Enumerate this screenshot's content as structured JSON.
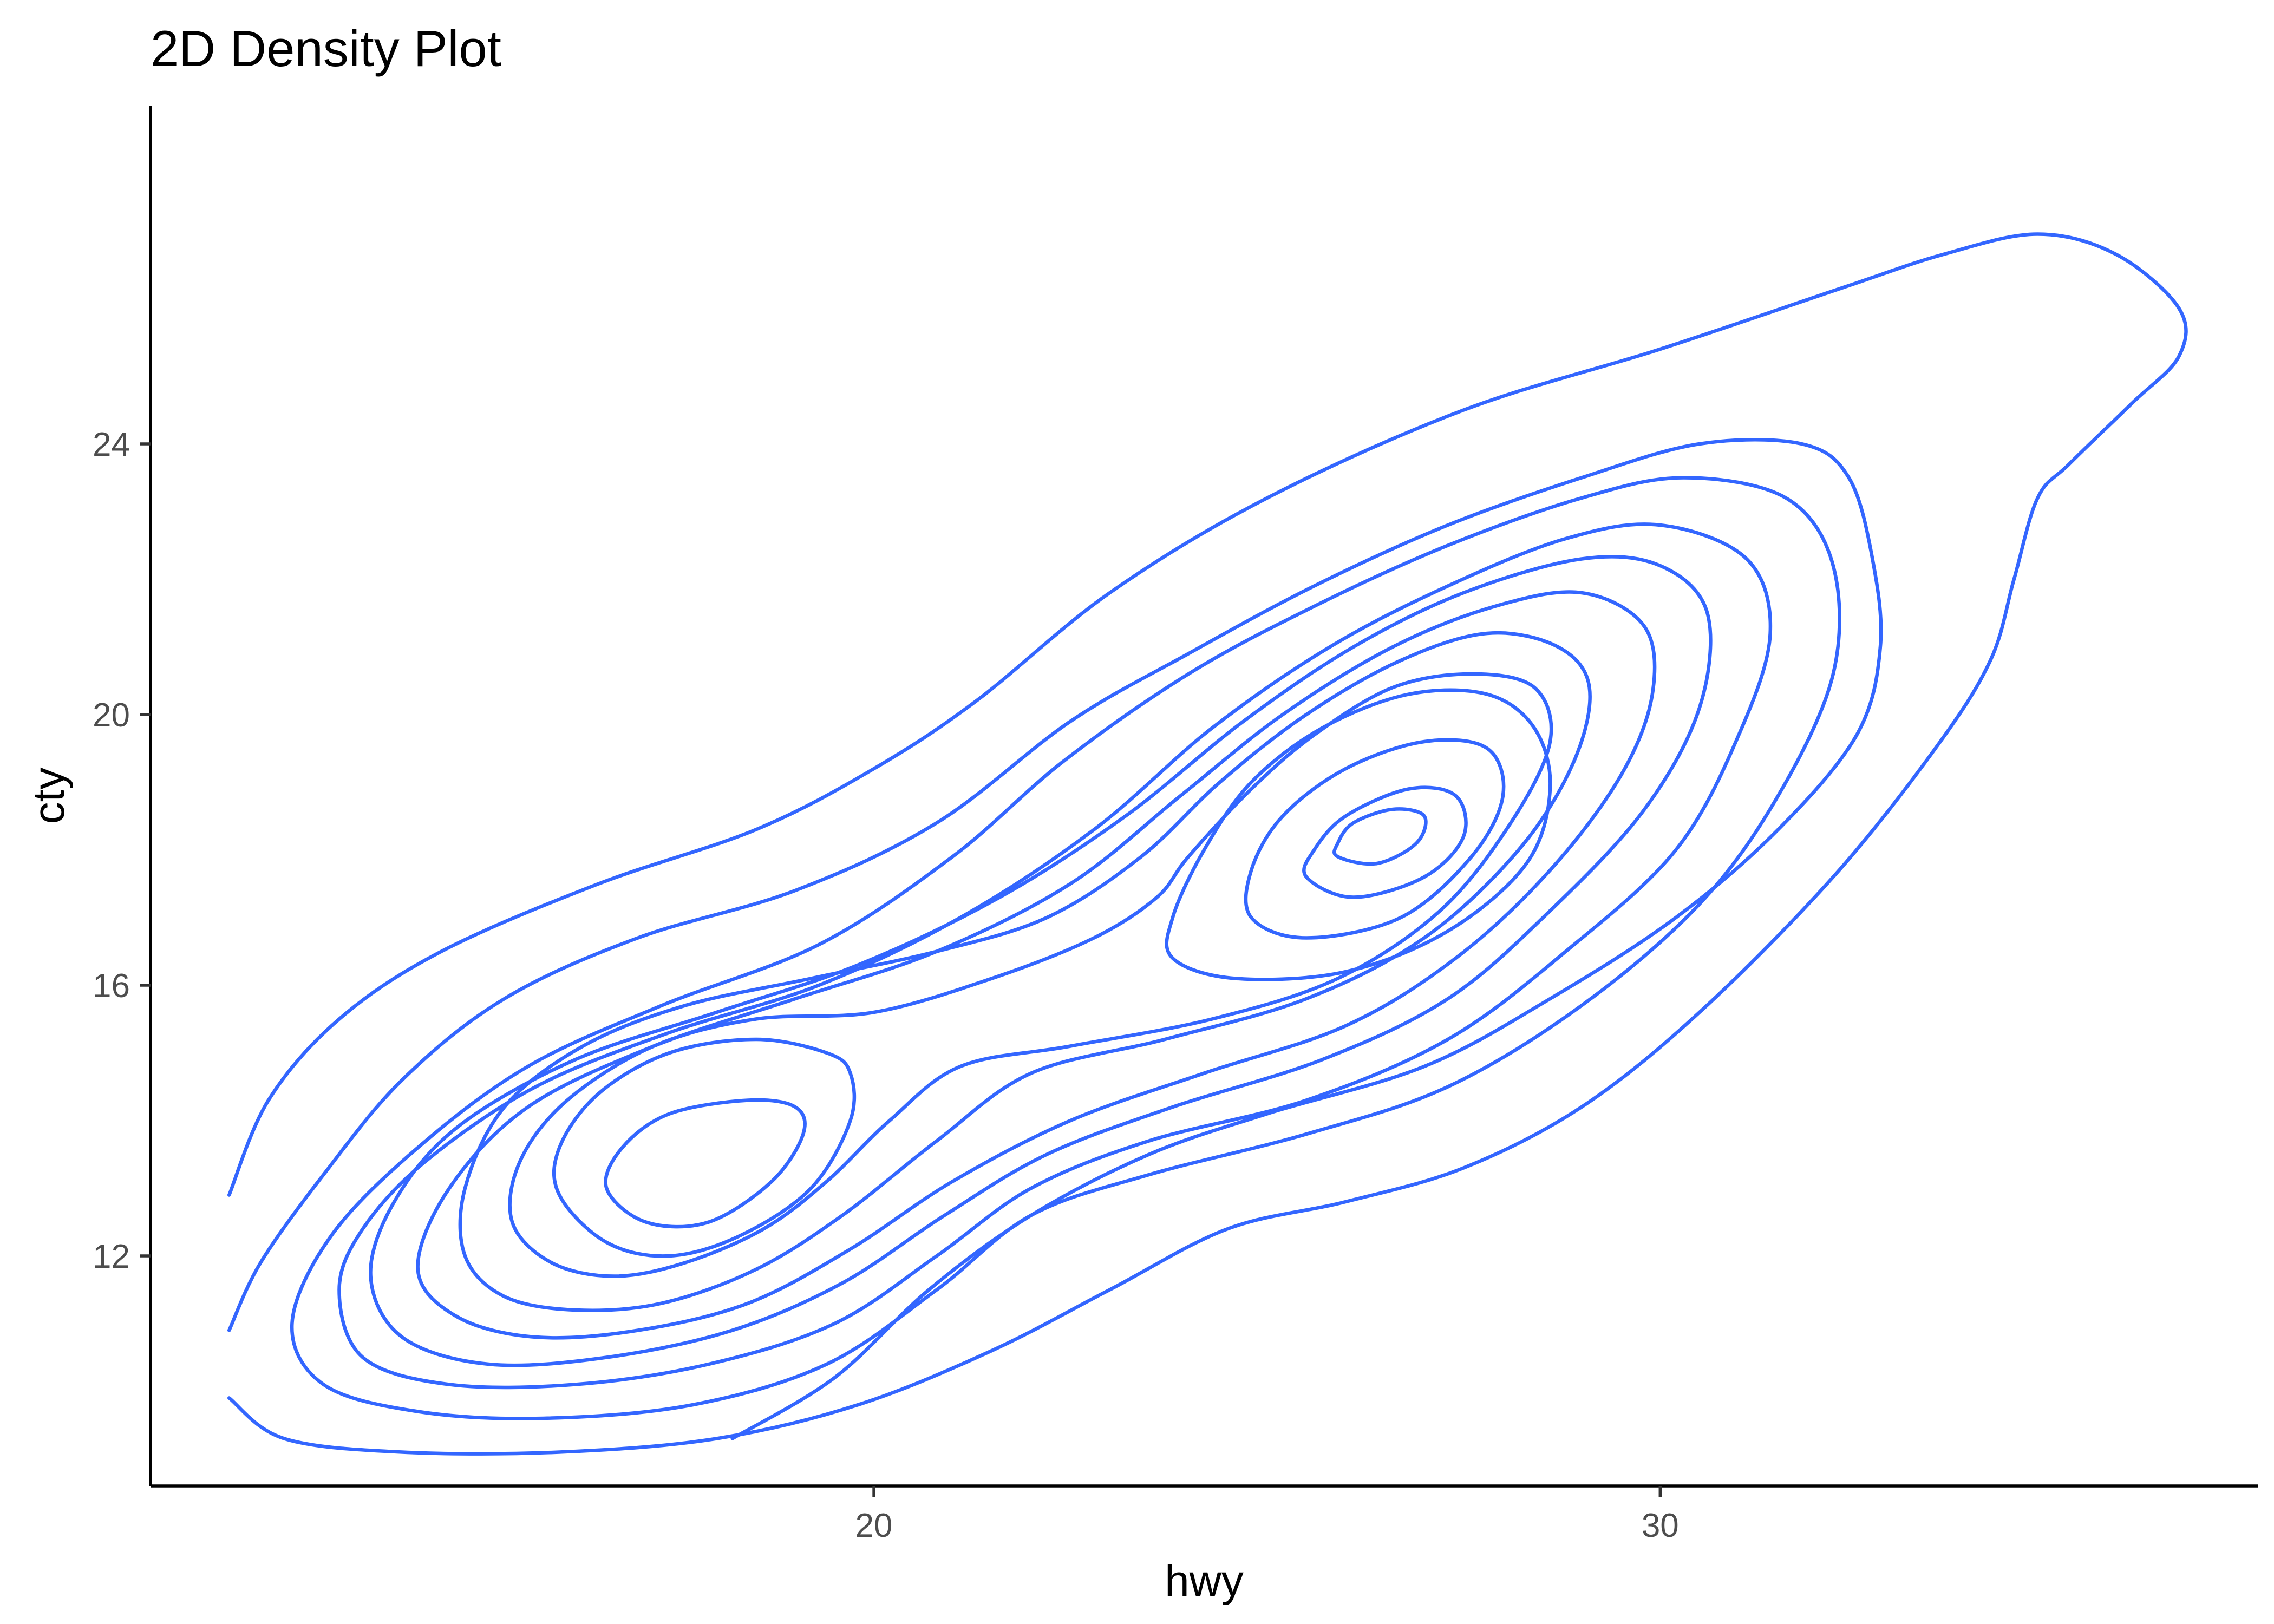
{
  "chart_data": {
    "type": "contour",
    "title": "2D Density Plot",
    "xlabel": "hwy",
    "ylabel": "cty",
    "xlim": [
      10.8,
      37.6
    ],
    "ylim": [
      8.6,
      29.0
    ],
    "x_ticks": [
      20,
      30
    ],
    "y_ticks": [
      12,
      16,
      20,
      24
    ],
    "grid": false,
    "line_color": "#3366FF",
    "density_peaks": [
      {
        "hwy": 26.1,
        "cty": 18.1
      },
      {
        "hwy": 17.1,
        "cty": 13.3
      }
    ],
    "contour_levels": [
      {
        "name": "level-1",
        "shape": "open",
        "points": [
          [
            11.8,
            9.9
          ],
          [
            12.5,
            9.3
          ],
          [
            14,
            9.1
          ],
          [
            16,
            9.1
          ],
          [
            18,
            9.3
          ],
          [
            19.8,
            9.8
          ],
          [
            21.5,
            10.6
          ],
          [
            23,
            11.5
          ],
          [
            24.5,
            12.4
          ],
          [
            26,
            12.8
          ],
          [
            27.5,
            13.3
          ],
          [
            29,
            14.2
          ],
          [
            30.5,
            15.6
          ],
          [
            32.2,
            17.6
          ],
          [
            33.5,
            19.5
          ],
          [
            34.2,
            20.8
          ],
          [
            34.5,
            22
          ],
          [
            34.8,
            23.2
          ],
          [
            35.2,
            23.7
          ],
          [
            36,
            24.6
          ],
          [
            36.6,
            25.3
          ],
          [
            36.6,
            26
          ],
          [
            35.8,
            26.8
          ],
          [
            34.8,
            27.1
          ],
          [
            33.6,
            26.8
          ],
          [
            32.3,
            26.3
          ],
          [
            30,
            25.4
          ],
          [
            27.5,
            24.5
          ],
          [
            25,
            23.2
          ],
          [
            23,
            21.8
          ],
          [
            21.3,
            20.2
          ],
          [
            20,
            19.2
          ],
          [
            18.5,
            18.3
          ],
          [
            16.5,
            17.5
          ],
          [
            14.5,
            16.5
          ],
          [
            13.2,
            15.5
          ],
          [
            12.3,
            14.3
          ],
          [
            11.8,
            12.9
          ]
        ]
      },
      {
        "name": "level-2",
        "shape": "open",
        "points": [
          [
            11.8,
            10.9
          ],
          [
            12.2,
            11.9
          ],
          [
            13,
            13.2
          ],
          [
            14,
            14.6
          ],
          [
            15.3,
            15.8
          ],
          [
            17,
            16.7
          ],
          [
            19,
            17.4
          ],
          [
            20.8,
            18.4
          ],
          [
            22.5,
            19.9
          ],
          [
            24,
            20.9
          ],
          [
            25.6,
            21.9
          ],
          [
            27.3,
            22.8
          ],
          [
            29,
            23.5
          ],
          [
            30.5,
            24
          ],
          [
            31.8,
            24
          ],
          [
            32.4,
            23.5
          ],
          [
            32.7,
            22.3
          ],
          [
            32.8,
            21
          ],
          [
            32.5,
            19.7
          ],
          [
            31.5,
            18.3
          ],
          [
            30.2,
            17
          ],
          [
            28.6,
            15.8
          ],
          [
            27,
            14.8
          ],
          [
            25,
            14.1
          ],
          [
            23.5,
            13.5
          ],
          [
            22,
            12.6
          ],
          [
            20.7,
            11.5
          ],
          [
            19.5,
            10.2
          ],
          [
            18.2,
            9.3
          ]
        ]
      },
      {
        "name": "level-3",
        "shape": "closed",
        "points": [
          [
            12.6,
            11
          ],
          [
            13,
            10.1
          ],
          [
            14.2,
            9.7
          ],
          [
            15.8,
            9.6
          ],
          [
            17.7,
            9.8
          ],
          [
            19.4,
            10.4
          ],
          [
            20.8,
            11.5
          ],
          [
            22,
            12.6
          ],
          [
            23.5,
            13.2
          ],
          [
            25.5,
            13.8
          ],
          [
            27.3,
            14.5
          ],
          [
            29,
            15.7
          ],
          [
            30.5,
            17.2
          ],
          [
            31.5,
            18.8
          ],
          [
            32.2,
            20.6
          ],
          [
            32.2,
            22.2
          ],
          [
            31.6,
            23.2
          ],
          [
            30.3,
            23.5
          ],
          [
            29,
            23.2
          ],
          [
            27.3,
            22.5
          ],
          [
            25.6,
            21.6
          ],
          [
            24,
            20.6
          ],
          [
            22.4,
            19.3
          ],
          [
            21,
            17.9
          ],
          [
            19.3,
            16.6
          ],
          [
            17.3,
            15.7
          ],
          [
            15.6,
            14.8
          ],
          [
            14.2,
            13.6
          ],
          [
            13.1,
            12.3
          ]
        ]
      },
      {
        "name": "level-4",
        "shape": "closed",
        "points": [
          [
            13.2,
            11.5
          ],
          [
            13.5,
            10.5
          ],
          [
            14.6,
            10.1
          ],
          [
            16.2,
            10.1
          ],
          [
            17.9,
            10.4
          ],
          [
            19.5,
            11
          ],
          [
            20.8,
            12
          ],
          [
            22,
            13
          ],
          [
            23.5,
            13.7
          ],
          [
            25.5,
            14.3
          ],
          [
            27.3,
            15.2
          ],
          [
            28.8,
            16.5
          ],
          [
            30.2,
            18
          ],
          [
            31,
            19.7
          ],
          [
            31.4,
            21.2
          ],
          [
            31.1,
            22.3
          ],
          [
            30,
            22.8
          ],
          [
            28.8,
            22.6
          ],
          [
            27.3,
            21.9
          ],
          [
            25.8,
            21
          ],
          [
            24.3,
            19.8
          ],
          [
            22.8,
            18.3
          ],
          [
            21.1,
            17
          ],
          [
            19.3,
            16
          ],
          [
            17.4,
            15.3
          ],
          [
            15.7,
            14.5
          ],
          [
            14.3,
            13.4
          ],
          [
            13.5,
            12.4
          ]
        ]
      },
      {
        "name": "level-5",
        "shape": "closed",
        "points": [
          [
            13.6,
            11.7
          ],
          [
            14,
            10.8
          ],
          [
            15.1,
            10.4
          ],
          [
            16.6,
            10.5
          ],
          [
            18.2,
            10.9
          ],
          [
            19.6,
            11.6
          ],
          [
            20.9,
            12.6
          ],
          [
            22.2,
            13.5
          ],
          [
            23.8,
            14.2
          ],
          [
            25.7,
            14.9
          ],
          [
            27.3,
            15.8
          ],
          [
            28.6,
            17.1
          ],
          [
            29.8,
            18.6
          ],
          [
            30.5,
            20.1
          ],
          [
            30.6,
            21.5
          ],
          [
            30,
            22.2
          ],
          [
            29,
            22.3
          ],
          [
            27.5,
            21.8
          ],
          [
            26.1,
            21
          ],
          [
            24.7,
            19.9
          ],
          [
            23.2,
            18.5
          ],
          [
            21.6,
            17.3
          ],
          [
            19.8,
            16.3
          ],
          [
            18,
            15.6
          ],
          [
            16.2,
            14.9
          ],
          [
            14.7,
            13.9
          ],
          [
            13.9,
            12.8
          ]
        ]
      },
      {
        "name": "level-6",
        "shape": "closed",
        "points": [
          [
            14.2,
            11.8
          ],
          [
            14.7,
            11.1
          ],
          [
            15.7,
            10.8
          ],
          [
            17,
            10.9
          ],
          [
            18.4,
            11.3
          ],
          [
            19.7,
            12.1
          ],
          [
            21,
            13.1
          ],
          [
            22.5,
            14
          ],
          [
            24.2,
            14.7
          ],
          [
            26,
            15.4
          ],
          [
            27.4,
            16.4
          ],
          [
            28.6,
            17.7
          ],
          [
            29.5,
            19.1
          ],
          [
            29.9,
            20.3
          ],
          [
            29.8,
            21.3
          ],
          [
            29,
            21.8
          ],
          [
            27.9,
            21.6
          ],
          [
            26.6,
            21
          ],
          [
            25.2,
            20
          ],
          [
            23.9,
            18.8
          ],
          [
            22.5,
            17.5
          ],
          [
            20.8,
            16.5
          ],
          [
            19,
            15.8
          ],
          [
            17.2,
            15.1
          ],
          [
            15.6,
            14.2
          ],
          [
            14.6,
            13
          ]
        ]
      },
      {
        "name": "level-7",
        "shape": "closed",
        "points": [
          [
            14.8,
            12
          ],
          [
            15.3,
            11.4
          ],
          [
            16.2,
            11.2
          ],
          [
            17.3,
            11.3
          ],
          [
            18.5,
            11.8
          ],
          [
            19.6,
            12.6
          ],
          [
            20.8,
            13.7
          ],
          [
            22,
            14.7
          ],
          [
            23.7,
            15.2
          ],
          [
            25.5,
            15.8
          ],
          [
            27,
            16.7
          ],
          [
            28.2,
            18
          ],
          [
            28.9,
            19.3
          ],
          [
            29.1,
            20.4
          ],
          [
            28.7,
            21
          ],
          [
            27.8,
            21.2
          ],
          [
            26.7,
            20.8
          ],
          [
            25.5,
            20
          ],
          [
            24.4,
            19
          ],
          [
            23.4,
            17.9
          ],
          [
            22.2,
            17
          ],
          [
            20.8,
            16.5
          ],
          [
            19.2,
            16.1
          ],
          [
            17.6,
            15.7
          ],
          [
            16.3,
            15.1
          ],
          [
            15.3,
            14.2
          ],
          [
            14.8,
            13
          ]
        ]
      },
      {
        "name": "level-8",
        "shape": "closed",
        "points": [
          [
            15.4,
            12.5
          ],
          [
            15.9,
            11.9
          ],
          [
            16.7,
            11.7
          ],
          [
            17.6,
            11.9
          ],
          [
            18.6,
            12.4
          ],
          [
            19.4,
            13.1
          ],
          [
            20.2,
            14
          ],
          [
            21.1,
            14.8
          ],
          [
            22.5,
            15.1
          ],
          [
            24.3,
            15.5
          ],
          [
            25.9,
            16.1
          ],
          [
            27.2,
            17.1
          ],
          [
            28.1,
            18.4
          ],
          [
            28.6,
            19.6
          ],
          [
            28.4,
            20.4
          ],
          [
            27.6,
            20.6
          ],
          [
            26.6,
            20.4
          ],
          [
            25.6,
            19.7
          ],
          [
            24.8,
            18.9
          ],
          [
            24,
            17.9
          ],
          [
            23.6,
            17.3
          ],
          [
            22.8,
            16.7
          ],
          [
            21.5,
            16.1
          ],
          [
            20,
            15.6
          ],
          [
            18.5,
            15.5
          ],
          [
            17.2,
            15.1
          ],
          [
            16.1,
            14.3
          ],
          [
            15.5,
            13.4
          ]
        ]
      },
      {
        "name": "level-9",
        "shape": "closed",
        "points": [
          [
            16,
            12.9
          ],
          [
            16.6,
            12.2
          ],
          [
            17.4,
            12
          ],
          [
            18.3,
            12.3
          ],
          [
            19.2,
            13
          ],
          [
            19.7,
            14
          ],
          [
            19.7,
            14.7
          ],
          [
            19.4,
            15
          ],
          [
            18.5,
            15.2
          ],
          [
            17.4,
            15
          ],
          [
            16.5,
            14.4
          ],
          [
            16,
            13.6
          ]
        ]
      },
      {
        "name": "level-10",
        "shape": "closed",
        "points": [
          [
            16.6,
            13
          ],
          [
            17.1,
            12.5
          ],
          [
            17.9,
            12.5
          ],
          [
            18.7,
            13.1
          ],
          [
            19.1,
            13.8
          ],
          [
            19,
            14.2
          ],
          [
            18.4,
            14.3
          ],
          [
            17.4,
            14.1
          ],
          [
            16.8,
            13.6
          ]
        ]
      },
      {
        "name": "level-11",
        "shape": "closed",
        "points": [
          [
            23.8,
            16.4
          ],
          [
            24.6,
            16.1
          ],
          [
            26,
            16.2
          ],
          [
            27.3,
            16.8
          ],
          [
            28.3,
            17.8
          ],
          [
            28.6,
            18.9
          ],
          [
            28.4,
            19.8
          ],
          [
            27.8,
            20.3
          ],
          [
            26.8,
            20.3
          ],
          [
            25.7,
            19.8
          ],
          [
            24.8,
            19
          ],
          [
            24.2,
            18
          ],
          [
            23.8,
            17
          ]
        ]
      },
      {
        "name": "level-12",
        "shape": "closed",
        "points": [
          [
            24.8,
            17
          ],
          [
            25.5,
            16.7
          ],
          [
            26.7,
            17
          ],
          [
            27.6,
            17.9
          ],
          [
            28,
            18.8
          ],
          [
            27.8,
            19.5
          ],
          [
            27,
            19.6
          ],
          [
            26,
            19.2
          ],
          [
            25.2,
            18.5
          ],
          [
            24.8,
            17.7
          ]
        ]
      },
      {
        "name": "level-13",
        "shape": "closed",
        "points": [
          [
            25.5,
            17.6
          ],
          [
            26.1,
            17.3
          ],
          [
            27,
            17.6
          ],
          [
            27.5,
            18.2
          ],
          [
            27.4,
            18.8
          ],
          [
            26.8,
            18.9
          ],
          [
            26,
            18.5
          ],
          [
            25.6,
            18
          ]
        ]
      },
      {
        "name": "level-14",
        "shape": "closed",
        "points": [
          [
            25.9,
            17.9
          ],
          [
            26.4,
            17.8
          ],
          [
            26.9,
            18.1
          ],
          [
            27,
            18.5
          ],
          [
            26.6,
            18.6
          ],
          [
            26.1,
            18.4
          ],
          [
            25.9,
            18.1
          ]
        ]
      }
    ]
  }
}
